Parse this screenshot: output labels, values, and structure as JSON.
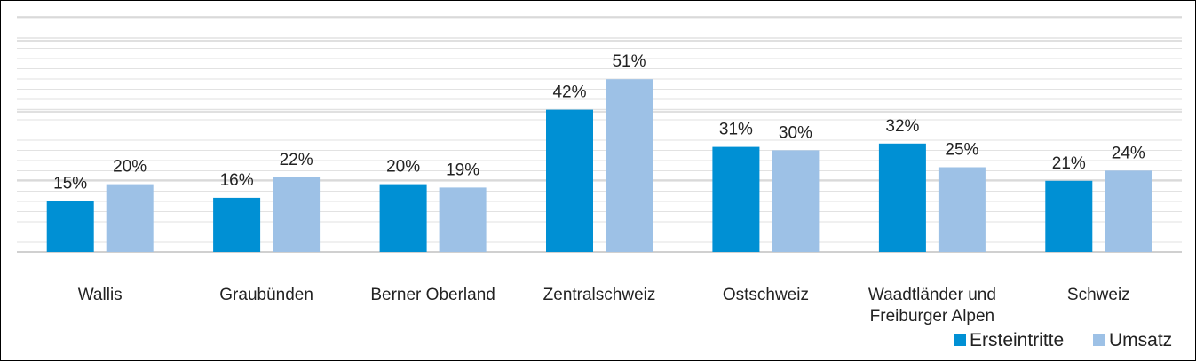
{
  "chart_data": {
    "type": "bar",
    "title": "",
    "xlabel": "",
    "ylabel": "",
    "ylim": [
      0,
      60
    ],
    "grid": true,
    "legend_position": "bottom-right",
    "categories": [
      [
        "Wallis"
      ],
      [
        "Graubünden"
      ],
      [
        "Berner Oberland"
      ],
      [
        "Zentralschweiz"
      ],
      [
        "Ostschweiz"
      ],
      [
        "Waadtländer und",
        "Freiburger Alpen"
      ],
      [
        "Schweiz"
      ]
    ],
    "series": [
      {
        "name": "Ersteintritte",
        "color": "#0090D4",
        "values": [
          15,
          16,
          20,
          42,
          31,
          32,
          21
        ],
        "labels": [
          "15%",
          "16%",
          "20%",
          "42%",
          "31%",
          "32%",
          "21%"
        ]
      },
      {
        "name": "Umsatz",
        "color": "#9DC1E6",
        "values": [
          20,
          22,
          19,
          51,
          30,
          25,
          24
        ],
        "labels": [
          "20%",
          "22%",
          "19%",
          "51%",
          "30%",
          "25%",
          "24%"
        ]
      }
    ]
  }
}
